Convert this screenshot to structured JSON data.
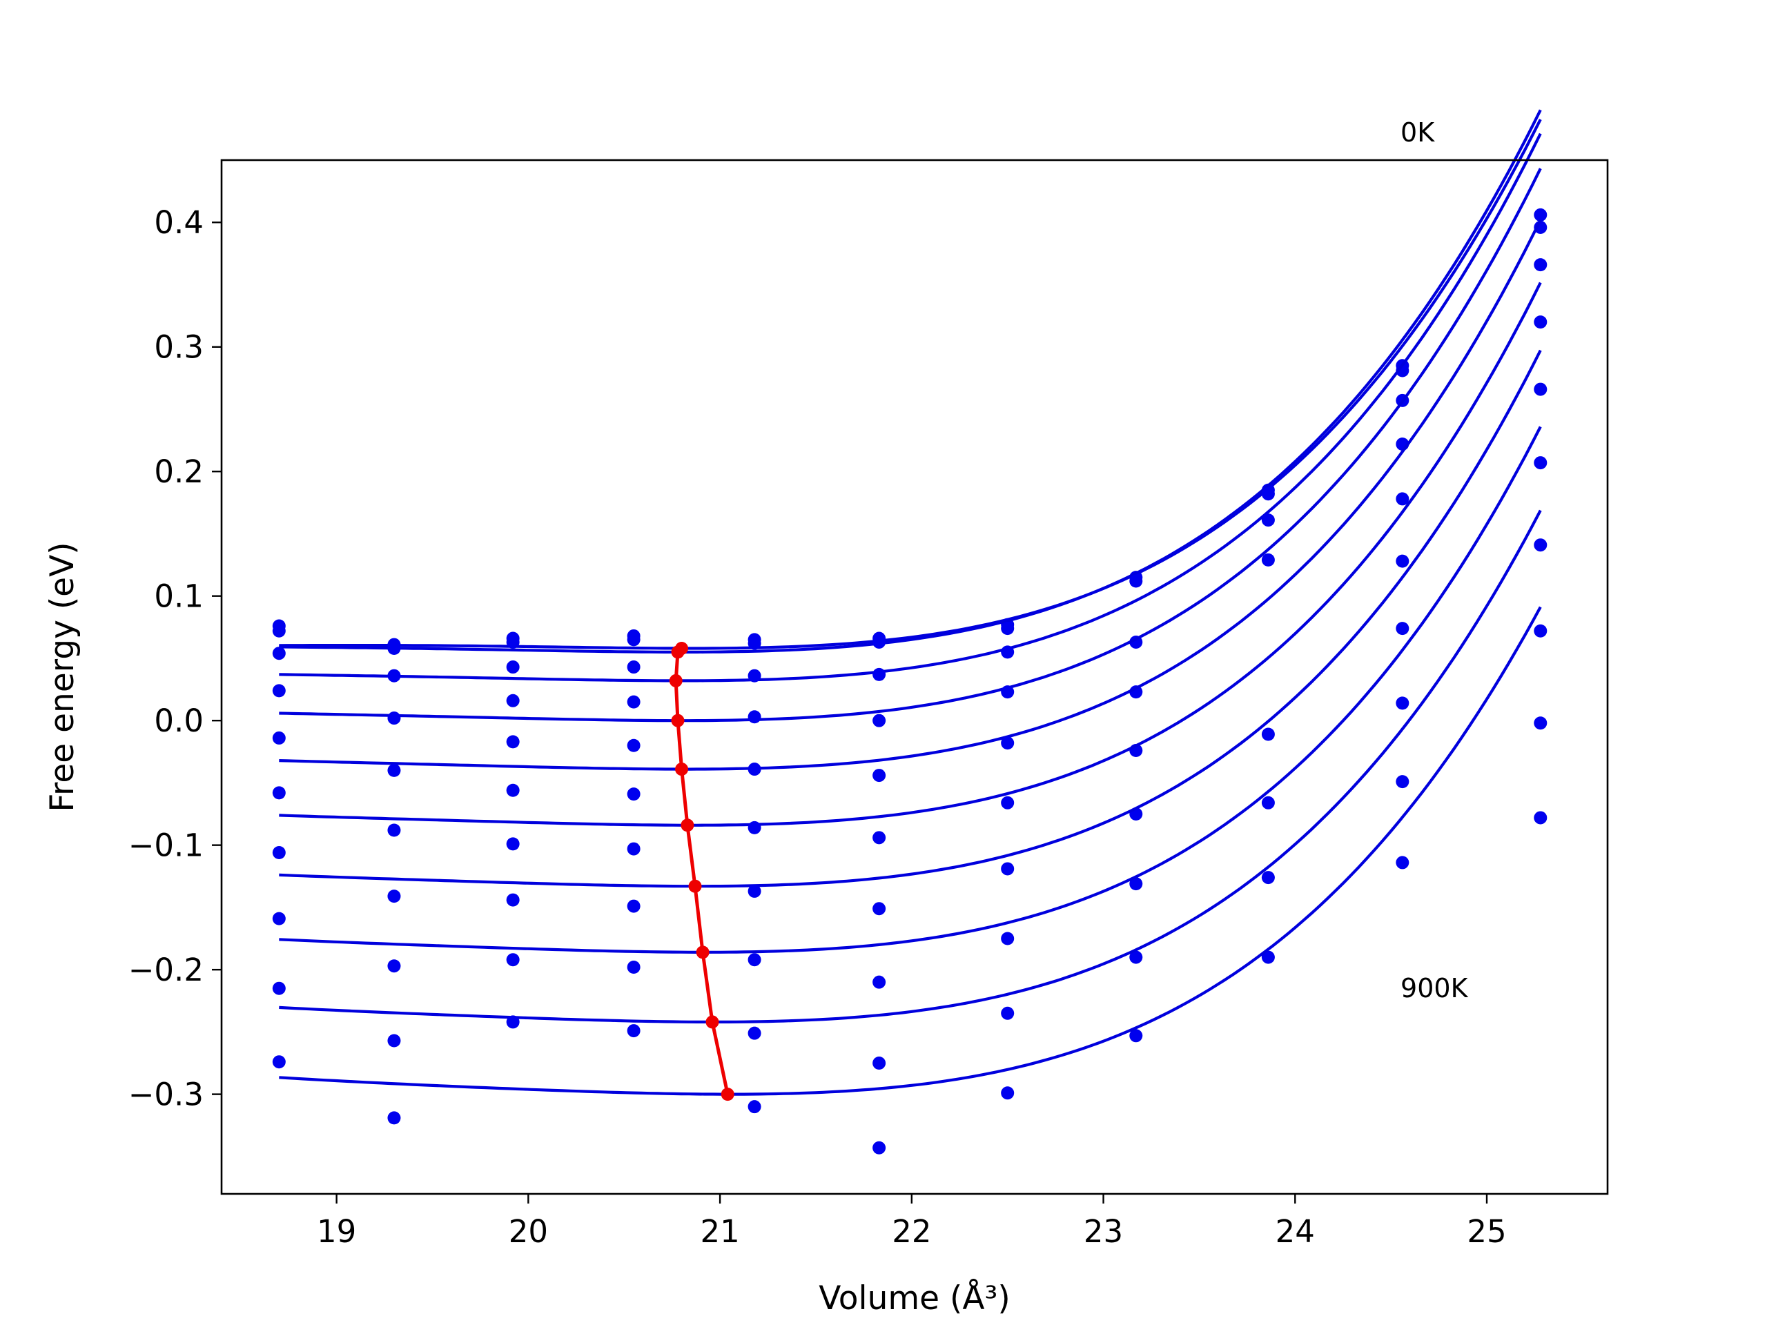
{
  "chart_data": {
    "type": "line",
    "title": "",
    "xlabel": "Volume (Å³)",
    "ylabel": "Free energy (eV)",
    "xlim": [
      18.4,
      25.63
    ],
    "ylim": [
      -0.38,
      0.45
    ],
    "xticks": [
      19,
      20,
      21,
      22,
      23,
      24,
      25
    ],
    "yticks": [
      -0.3,
      -0.2,
      -0.1,
      0.0,
      0.1,
      0.2,
      0.3,
      0.4
    ],
    "grid": false,
    "legend": "none",
    "colors": {
      "fit": "#0000dd",
      "points": "#0000ee",
      "minimum": "#ee0000",
      "frame": "#000000"
    },
    "annotations": [
      {
        "text": "0K",
        "x": 24.55,
        "y": 0.465
      },
      {
        "text": "900K",
        "x": 24.55,
        "y": -0.222
      }
    ],
    "volumes": [
      18.7,
      19.3,
      19.92,
      20.55,
      21.18,
      21.83,
      22.5,
      23.17,
      23.86,
      24.56,
      25.28
    ],
    "series": [
      {
        "points": [
          0.076,
          0.061,
          0.066,
          0.068,
          0.065,
          0.066,
          0.077,
          0.115,
          0.185,
          0.285,
          0.406
        ],
        "fit": {
          "v0": 20.85,
          "e0": 0.058,
          "a": 0.0036,
          "b": 0.0023,
          "c": 0.0004
        }
      },
      {
        "points": [
          0.072,
          0.058,
          0.063,
          0.065,
          0.062,
          0.063,
          0.074,
          0.112,
          0.182,
          0.281,
          0.396
        ],
        "fit": {
          "v0": 20.8,
          "e0": 0.055,
          "a": 0.0038,
          "b": 0.0022,
          "c": 0.0004
        }
      },
      {
        "points": [
          0.054,
          0.036,
          0.043,
          0.043,
          0.036,
          0.037,
          0.055,
          0.063,
          0.161,
          0.257,
          0.366
        ],
        "fit": {
          "v0": 20.8,
          "e0": 0.032,
          "a": 0.004,
          "b": 0.0022,
          "c": 0.0004
        }
      },
      {
        "points": [
          0.024,
          0.002,
          0.016,
          0.015,
          0.003,
          0.0,
          0.023,
          0.023,
          0.129,
          0.222,
          0.32
        ],
        "fit": {
          "v0": 20.8,
          "e0": 0.0,
          "a": 0.0042,
          "b": 0.0022,
          "c": 0.0004
        }
      },
      {
        "points": [
          -0.014,
          -0.04,
          -0.017,
          -0.02,
          -0.039,
          -0.044,
          -0.018,
          -0.024,
          -0.011,
          0.178,
          0.266
        ],
        "fit": {
          "v0": 20.82,
          "e0": -0.039,
          "a": 0.0044,
          "b": 0.0022,
          "c": 0.0004
        }
      },
      {
        "points": [
          -0.058,
          -0.088,
          -0.056,
          -0.059,
          -0.086,
          -0.094,
          -0.066,
          -0.075,
          -0.066,
          0.128,
          0.207
        ],
        "fit": {
          "v0": 20.85,
          "e0": -0.084,
          "a": 0.0046,
          "b": 0.0022,
          "c": 0.0004
        }
      },
      {
        "points": [
          -0.106,
          -0.141,
          -0.099,
          -0.103,
          -0.137,
          -0.151,
          -0.119,
          -0.131,
          -0.126,
          0.074,
          0.141
        ],
        "fit": {
          "v0": 20.88,
          "e0": -0.133,
          "a": 0.0048,
          "b": 0.0022,
          "c": 0.0004
        }
      },
      {
        "points": [
          -0.159,
          -0.197,
          -0.144,
          -0.149,
          -0.192,
          -0.21,
          -0.175,
          -0.19,
          -0.19,
          0.014,
          0.072
        ],
        "fit": {
          "v0": 20.92,
          "e0": -0.186,
          "a": 0.005,
          "b": 0.0022,
          "c": 0.0004
        }
      },
      {
        "points": [
          -0.215,
          -0.257,
          -0.192,
          -0.198,
          -0.251,
          -0.275,
          -0.235,
          -0.253,
          null,
          -0.049,
          -0.002
        ],
        "fit": {
          "v0": 20.97,
          "e0": -0.242,
          "a": 0.0052,
          "b": 0.0022,
          "c": 0.0004
        }
      },
      {
        "points": [
          -0.274,
          -0.319,
          -0.242,
          -0.249,
          -0.31,
          -0.343,
          -0.299,
          null,
          null,
          -0.114,
          -0.078
        ],
        "fit": {
          "v0": 21.05,
          "e0": -0.3,
          "a": 0.0054,
          "b": 0.0022,
          "c": 0.0004
        }
      }
    ],
    "minimum_line": {
      "x": [
        20.8,
        20.78,
        20.77,
        20.78,
        20.8,
        20.83,
        20.87,
        20.91,
        20.96,
        21.04
      ],
      "y": [
        0.058,
        0.055,
        0.032,
        0.0,
        -0.039,
        -0.084,
        -0.133,
        -0.186,
        -0.242,
        -0.3
      ]
    }
  }
}
